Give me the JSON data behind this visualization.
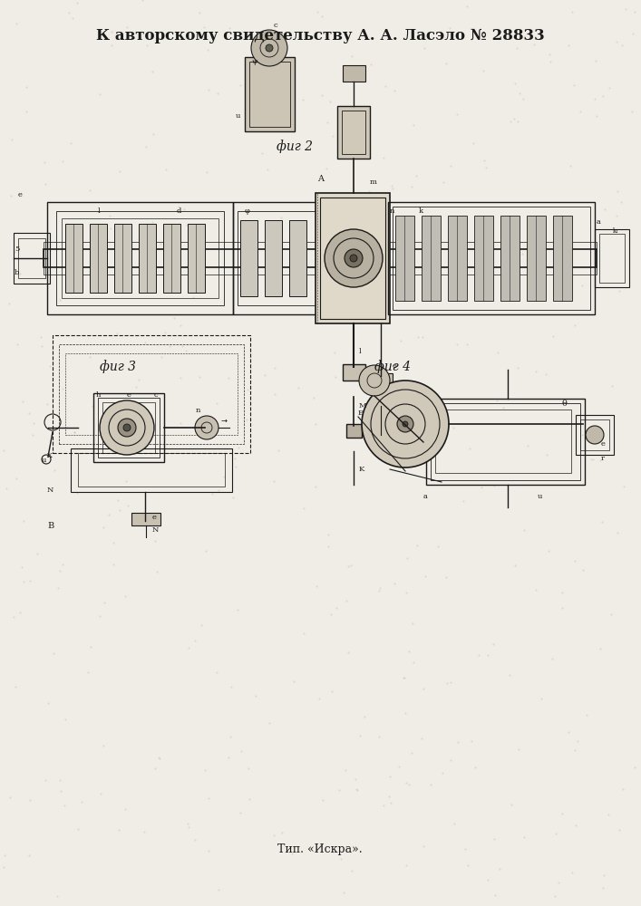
{
  "title": "К авторскому свидетельству А. А. Ласэло № 28833",
  "footer": "Тип. «Искра».",
  "fig2_label": "фиг 2",
  "fig3_label": "фиг 3",
  "fig4_label": "фиг 4",
  "bg_color": "#f0ede6",
  "line_color": "#1a1a1a",
  "title_fontsize": 12,
  "label_fontsize": 10,
  "footer_fontsize": 9
}
